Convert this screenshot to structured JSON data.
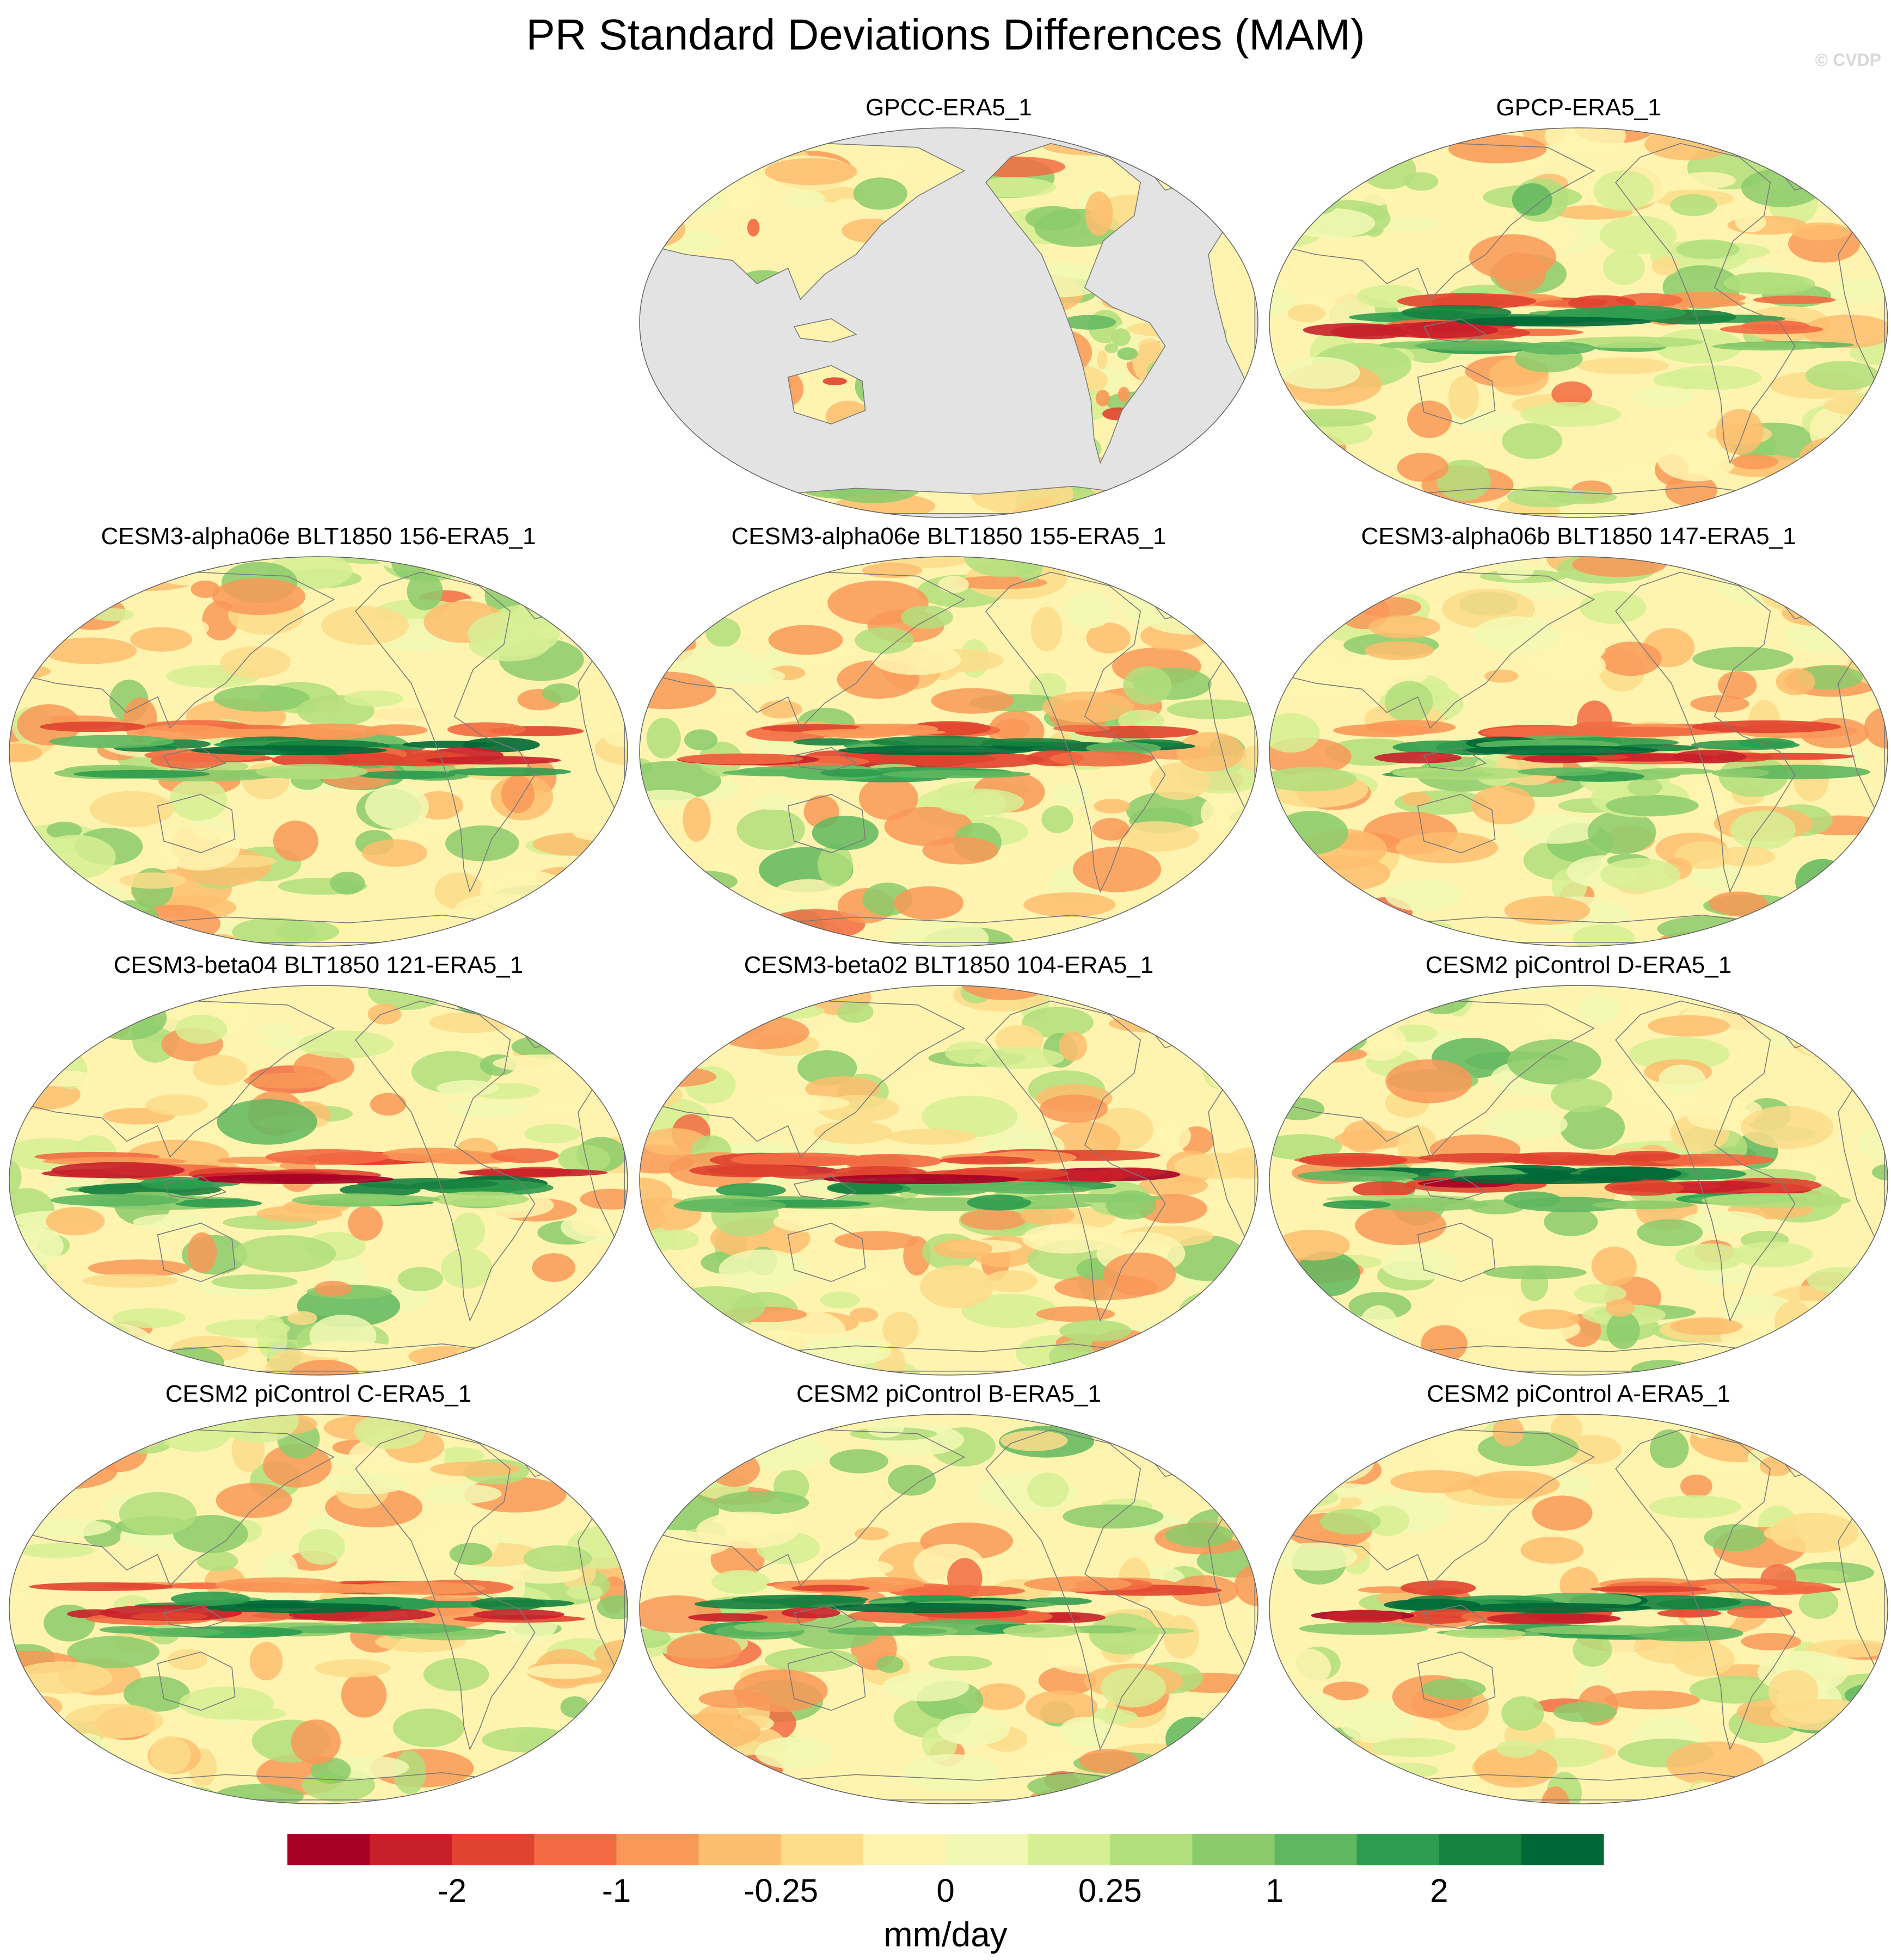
{
  "title": "PR Standard Deviations Differences (MAM)",
  "copyright": "© CVDP",
  "projection": "global-equal-area-ellipse-pacific-centered",
  "panels": [
    {
      "title": "GPCC-ERA5_1",
      "land_only": true
    },
    {
      "title": "GPCP-ERA5_1",
      "land_only": false
    },
    {
      "title": "CESM3-alpha06e BLT1850 156-ERA5_1",
      "land_only": false
    },
    {
      "title": "CESM3-alpha06e BLT1850 155-ERA5_1",
      "land_only": false
    },
    {
      "title": "CESM3-alpha06b BLT1850 147-ERA5_1",
      "land_only": false
    },
    {
      "title": "CESM3-beta04 BLT1850 121-ERA5_1",
      "land_only": false
    },
    {
      "title": "CESM3-beta02 BLT1850 104-ERA5_1",
      "land_only": false
    },
    {
      "title": "CESM2 piControl D-ERA5_1",
      "land_only": false
    },
    {
      "title": "CESM2 piControl C-ERA5_1",
      "land_only": false
    },
    {
      "title": "CESM2 piControl B-ERA5_1",
      "land_only": false
    },
    {
      "title": "CESM2 piControl A-ERA5_1",
      "land_only": false
    }
  ],
  "colorbar": {
    "colors": [
      "#a50026",
      "#c8202a",
      "#e0432f",
      "#f26b43",
      "#f99858",
      "#fdbd6f",
      "#fddc8a",
      "#fef4b0",
      "#f2f8b4",
      "#d6ee94",
      "#b2de7c",
      "#8bcb6b",
      "#5fb75f",
      "#2e9c4f",
      "#17813f",
      "#006837"
    ],
    "labels": [
      "-2",
      "-1",
      "-0.25",
      "0",
      "0.25",
      "1",
      "2"
    ],
    "unit": "mm/day"
  },
  "missing_color": "#e3e3e3",
  "coastline_color": "#7a7a7a"
}
